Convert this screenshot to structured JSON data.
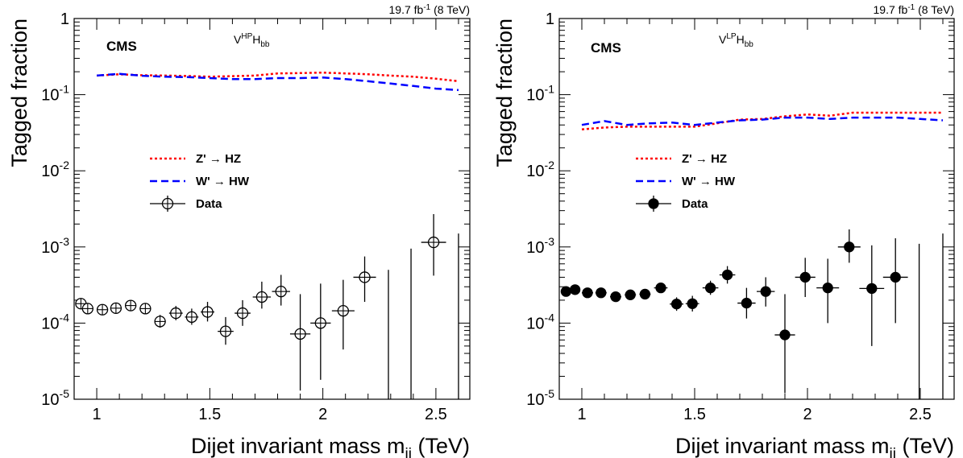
{
  "chart_data": [
    {
      "type": "line",
      "panel": "HP",
      "lumi_label": "19.7 fb",
      "lumi_exp": "-1",
      "lumi_energy": " (8 TeV)",
      "cms_label": "CMS",
      "category": {
        "base": "V",
        "sup": "HP",
        "mid": "H",
        "sub": "bb"
      },
      "xlabel": "Dijet invariant mass m",
      "xlabel_sub": "jj",
      "xlabel_unit": " (TeV)",
      "ylabel": "Tagged fraction",
      "xlim": [
        0.9,
        2.65
      ],
      "ylim": [
        1e-05,
        1
      ],
      "log_y": true,
      "x_ticks": [
        "1",
        "1.5",
        "2",
        "2.5"
      ],
      "y_ticks": [
        {
          "base": "1",
          "exp": ""
        },
        {
          "base": "10",
          "exp": "-1"
        },
        {
          "base": "10",
          "exp": "-2"
        },
        {
          "base": "10",
          "exp": "-3"
        },
        {
          "base": "10",
          "exp": "-4"
        },
        {
          "base": "10",
          "exp": "-5"
        }
      ],
      "legend": [
        {
          "label": "Z' → HZ",
          "style": "dotted",
          "color": "#ff0000"
        },
        {
          "label": "W' → HW",
          "style": "dashed",
          "color": "#0000ff"
        },
        {
          "label": "Data",
          "style": "marker",
          "marker": "open-circle"
        }
      ],
      "series": [
        {
          "name": "Z' → HZ",
          "color": "#ff0000",
          "style": "dotted",
          "x": [
            1.0,
            1.1,
            1.2,
            1.3,
            1.4,
            1.5,
            1.6,
            1.7,
            1.8,
            1.9,
            2.0,
            2.1,
            2.2,
            2.3,
            2.4,
            2.5,
            2.6
          ],
          "y": [
            0.178,
            0.185,
            0.18,
            0.178,
            0.176,
            0.172,
            0.175,
            0.178,
            0.19,
            0.192,
            0.195,
            0.19,
            0.185,
            0.178,
            0.172,
            0.162,
            0.15
          ]
        },
        {
          "name": "W' → HW",
          "color": "#0000ff",
          "style": "dashed",
          "x": [
            1.0,
            1.1,
            1.2,
            1.3,
            1.4,
            1.5,
            1.6,
            1.7,
            1.8,
            1.9,
            2.0,
            2.1,
            2.2,
            2.3,
            2.4,
            2.5,
            2.6
          ],
          "y": [
            0.178,
            0.188,
            0.177,
            0.172,
            0.17,
            0.165,
            0.16,
            0.16,
            0.165,
            0.165,
            0.168,
            0.16,
            0.15,
            0.14,
            0.13,
            0.12,
            0.115
          ]
        },
        {
          "name": "Data",
          "marker": "open-circle",
          "points": [
            {
              "x": 0.93,
              "xerr": 0.02,
              "y": 0.00018,
              "ylo": 0.000165,
              "yhi": 0.000198
            },
            {
              "x": 0.96,
              "xerr": 0.02,
              "y": 0.000155,
              "ylo": 0.000143,
              "yhi": 0.00017
            },
            {
              "x": 1.025,
              "xerr": 0.025,
              "y": 0.00015,
              "ylo": 0.000137,
              "yhi": 0.000165
            },
            {
              "x": 1.085,
              "xerr": 0.025,
              "y": 0.000157,
              "ylo": 0.000142,
              "yhi": 0.000173
            },
            {
              "x": 1.15,
              "xerr": 0.025,
              "y": 0.00017,
              "ylo": 0.000152,
              "yhi": 0.000188
            },
            {
              "x": 1.215,
              "xerr": 0.025,
              "y": 0.000155,
              "ylo": 0.000136,
              "yhi": 0.000177
            },
            {
              "x": 1.28,
              "xerr": 0.025,
              "y": 0.000105,
              "ylo": 8.7e-05,
              "yhi": 0.000128
            },
            {
              "x": 1.35,
              "xerr": 0.03,
              "y": 0.000135,
              "ylo": 0.000109,
              "yhi": 0.000168
            },
            {
              "x": 1.42,
              "xerr": 0.03,
              "y": 0.00012,
              "ylo": 9.5e-05,
              "yhi": 0.000155
            },
            {
              "x": 1.49,
              "xerr": 0.03,
              "y": 0.00014,
              "ylo": 0.000105,
              "yhi": 0.00019
            },
            {
              "x": 1.57,
              "xerr": 0.035,
              "y": 7.8e-05,
              "ylo": 5.2e-05,
              "yhi": 0.00012
            },
            {
              "x": 1.645,
              "xerr": 0.035,
              "y": 0.000135,
              "ylo": 9.2e-05,
              "yhi": 0.0002
            },
            {
              "x": 1.73,
              "xerr": 0.04,
              "y": 0.00022,
              "ylo": 0.000155,
              "yhi": 0.00035
            },
            {
              "x": 1.815,
              "xerr": 0.04,
              "y": 0.00026,
              "ylo": 0.00017,
              "yhi": 0.00043
            },
            {
              "x": 1.9,
              "xerr": 0.045,
              "y": 7.2e-05,
              "ylo": 1.3e-05,
              "yhi": 0.00024
            },
            {
              "x": 1.99,
              "xerr": 0.045,
              "y": 0.0001,
              "ylo": 1.8e-05,
              "yhi": 0.00033
            },
            {
              "x": 2.09,
              "xerr": 0.05,
              "y": 0.000145,
              "ylo": 4.5e-05,
              "yhi": 0.00037
            },
            {
              "x": 2.185,
              "xerr": 0.05,
              "y": 0.0004,
              "ylo": 0.00019,
              "yhi": 0.00075
            },
            {
              "x": 2.29,
              "xerr": 0.0,
              "y": 1e-05,
              "ylo": 1e-05,
              "yhi": 0.0005
            },
            {
              "x": 2.39,
              "xerr": 0.0,
              "y": 1e-05,
              "ylo": 1e-05,
              "yhi": 0.00095
            },
            {
              "x": 2.49,
              "xerr": 0.055,
              "y": 0.00115,
              "ylo": 0.00042,
              "yhi": 0.0027
            },
            {
              "x": 2.6,
              "xerr": 0.0,
              "y": 1e-05,
              "ylo": 1e-05,
              "yhi": 0.0015
            }
          ]
        }
      ]
    },
    {
      "type": "line",
      "panel": "LP",
      "lumi_label": "19.7 fb",
      "lumi_exp": "-1",
      "lumi_energy": " (8 TeV)",
      "cms_label": "CMS",
      "category": {
        "base": "V",
        "sup": "LP",
        "mid": "H",
        "sub": "bb"
      },
      "xlabel": "Dijet invariant mass m",
      "xlabel_sub": "jj",
      "xlabel_unit": " (TeV)",
      "ylabel": "Tagged fraction",
      "xlim": [
        0.9,
        2.65
      ],
      "ylim": [
        1e-05,
        1
      ],
      "log_y": true,
      "x_ticks": [
        "1",
        "1.5",
        "2",
        "2.5"
      ],
      "y_ticks": [
        {
          "base": "1",
          "exp": ""
        },
        {
          "base": "10",
          "exp": "-1"
        },
        {
          "base": "10",
          "exp": "-2"
        },
        {
          "base": "10",
          "exp": "-3"
        },
        {
          "base": "10",
          "exp": "-4"
        },
        {
          "base": "10",
          "exp": "-5"
        }
      ],
      "legend": [
        {
          "label": "Z' → HZ",
          "style": "dotted",
          "color": "#ff0000"
        },
        {
          "label": "W' → HW",
          "style": "dashed",
          "color": "#0000ff"
        },
        {
          "label": "Data",
          "style": "marker",
          "marker": "filled-circle"
        }
      ],
      "series": [
        {
          "name": "Z' → HZ",
          "color": "#ff0000",
          "style": "dotted",
          "x": [
            1.0,
            1.1,
            1.2,
            1.3,
            1.4,
            1.5,
            1.6,
            1.7,
            1.8,
            1.9,
            2.0,
            2.1,
            2.2,
            2.3,
            2.4,
            2.5,
            2.6
          ],
          "y": [
            0.035,
            0.037,
            0.038,
            0.038,
            0.038,
            0.038,
            0.042,
            0.047,
            0.048,
            0.052,
            0.055,
            0.053,
            0.058,
            0.058,
            0.058,
            0.058,
            0.058
          ]
        },
        {
          "name": "W' → HW",
          "color": "#0000ff",
          "style": "dashed",
          "x": [
            1.0,
            1.1,
            1.2,
            1.3,
            1.4,
            1.5,
            1.6,
            1.7,
            1.8,
            1.9,
            2.0,
            2.1,
            2.2,
            2.3,
            2.4,
            2.5,
            2.6
          ],
          "y": [
            0.04,
            0.045,
            0.04,
            0.042,
            0.043,
            0.04,
            0.043,
            0.046,
            0.047,
            0.05,
            0.05,
            0.048,
            0.05,
            0.05,
            0.05,
            0.048,
            0.046
          ]
        },
        {
          "name": "Data",
          "marker": "filled-circle",
          "points": [
            {
              "x": 0.93,
              "xerr": 0.02,
              "y": 0.00026,
              "ylo": 0.00024,
              "yhi": 0.00028
            },
            {
              "x": 0.97,
              "xerr": 0.02,
              "y": 0.000275,
              "ylo": 0.000255,
              "yhi": 0.000295
            },
            {
              "x": 1.025,
              "xerr": 0.025,
              "y": 0.00025,
              "ylo": 0.000232,
              "yhi": 0.00027
            },
            {
              "x": 1.085,
              "xerr": 0.025,
              "y": 0.00025,
              "ylo": 0.00023,
              "yhi": 0.00027
            },
            {
              "x": 1.15,
              "xerr": 0.025,
              "y": 0.000222,
              "ylo": 0.000203,
              "yhi": 0.000243
            },
            {
              "x": 1.215,
              "xerr": 0.025,
              "y": 0.000235,
              "ylo": 0.000213,
              "yhi": 0.00026
            },
            {
              "x": 1.28,
              "xerr": 0.025,
              "y": 0.00024,
              "ylo": 0.000215,
              "yhi": 0.000268
            },
            {
              "x": 1.35,
              "xerr": 0.03,
              "y": 0.00029,
              "ylo": 0.000255,
              "yhi": 0.00033
            },
            {
              "x": 1.42,
              "xerr": 0.03,
              "y": 0.000178,
              "ylo": 0.000145,
              "yhi": 0.000218
            },
            {
              "x": 1.49,
              "xerr": 0.03,
              "y": 0.00018,
              "ylo": 0.000142,
              "yhi": 0.000228
            },
            {
              "x": 1.57,
              "xerr": 0.035,
              "y": 0.00029,
              "ylo": 0.000235,
              "yhi": 0.00036
            },
            {
              "x": 1.645,
              "xerr": 0.035,
              "y": 0.00043,
              "ylo": 0.00033,
              "yhi": 0.00056
            },
            {
              "x": 1.73,
              "xerr": 0.04,
              "y": 0.000183,
              "ylo": 0.000115,
              "yhi": 0.00029
            },
            {
              "x": 1.815,
              "xerr": 0.04,
              "y": 0.00026,
              "ylo": 0.000165,
              "yhi": 0.0004
            },
            {
              "x": 1.9,
              "xerr": 0.045,
              "y": 7e-05,
              "ylo": 1.2e-05,
              "yhi": 0.00024
            },
            {
              "x": 1.99,
              "xerr": 0.045,
              "y": 0.0004,
              "ylo": 0.00022,
              "yhi": 0.00072
            },
            {
              "x": 2.09,
              "xerr": 0.05,
              "y": 0.00029,
              "ylo": 0.0001,
              "yhi": 0.0007
            },
            {
              "x": 2.185,
              "xerr": 0.05,
              "y": 0.001,
              "ylo": 0.00062,
              "yhi": 0.0017
            },
            {
              "x": 2.285,
              "xerr": 0.055,
              "y": 0.000285,
              "ylo": 5e-05,
              "yhi": 0.00105
            },
            {
              "x": 2.39,
              "xerr": 0.055,
              "y": 0.0004,
              "ylo": 0.0001,
              "yhi": 0.0013
            },
            {
              "x": 2.495,
              "xerr": 0.0,
              "y": 1e-05,
              "ylo": 1e-05,
              "yhi": 0.0011
            },
            {
              "x": 2.6,
              "xerr": 0.0,
              "y": 1e-05,
              "ylo": 1e-05,
              "yhi": 0.0015
            }
          ]
        }
      ]
    }
  ]
}
